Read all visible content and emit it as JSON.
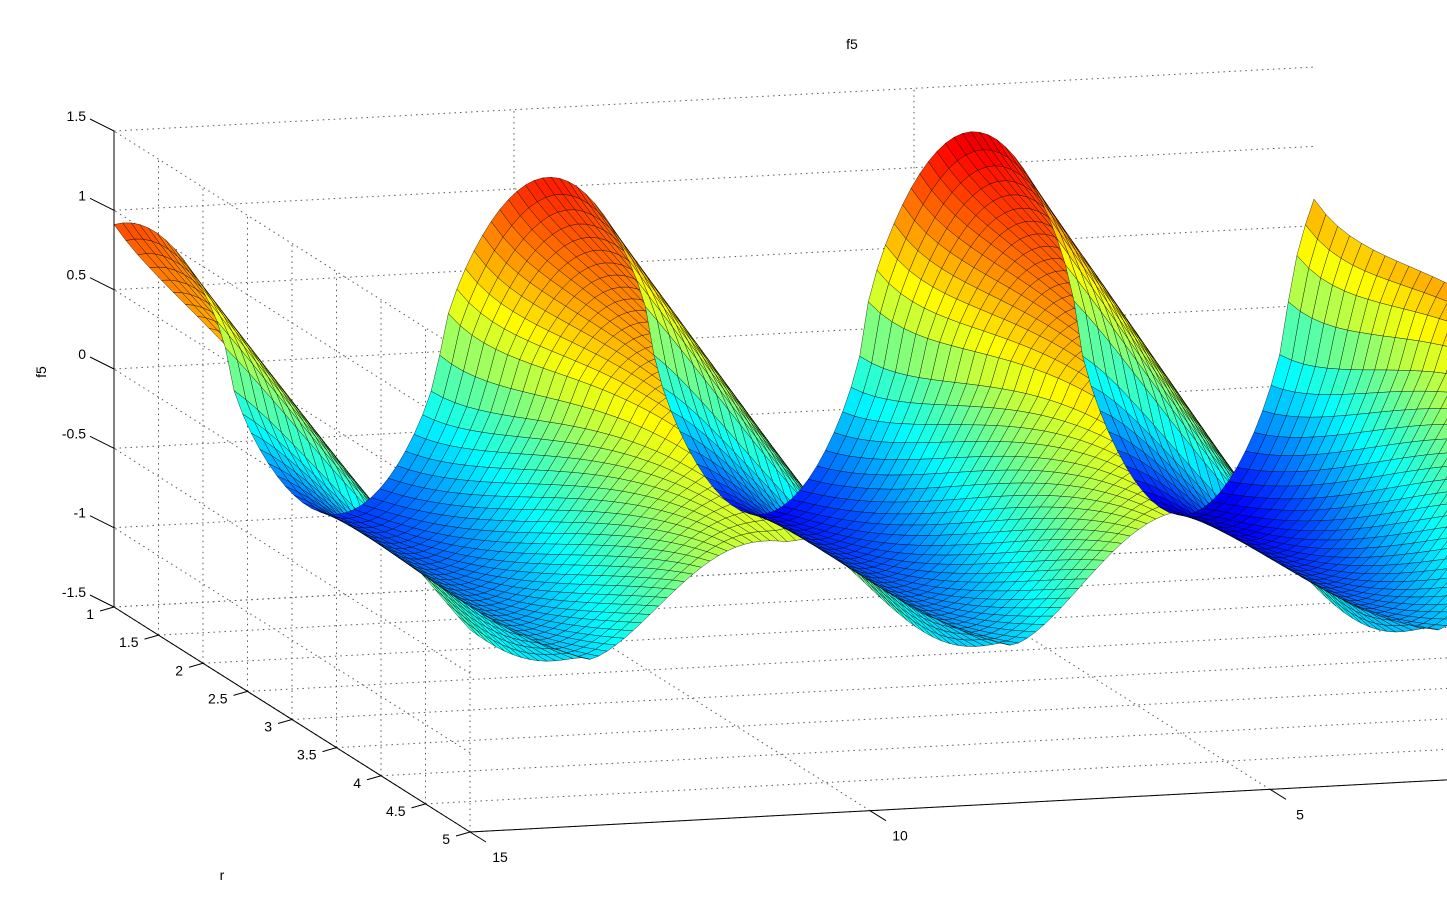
{
  "figure": {
    "title": "f5",
    "zlabel": "f5",
    "rlabel": "r"
  },
  "colors": {
    "background": "#ffffff",
    "axis": "#000000",
    "grid": "#5a5a5a",
    "edge": "#000000",
    "colormap": "jet"
  },
  "chart_data": {
    "type": "surface",
    "title": "f5",
    "zlabel": "f5",
    "rlabel": "r",
    "thlabel": "",
    "r_range": [
      1,
      5
    ],
    "th_range": [
      0,
      15
    ],
    "z_range": [
      -1.5,
      1.5
    ],
    "r_ticks": [
      "1",
      "1.5",
      "2",
      "2.5",
      "3",
      "3.5",
      "4",
      "4.5",
      "5"
    ],
    "th_ticks": [
      "15",
      "10",
      "5"
    ],
    "z_ticks": [
      "1.5",
      "1",
      "0.5",
      "0",
      "-0.5",
      "-1",
      "-1.5"
    ],
    "grid": true,
    "peaks_at_r1": [
      {
        "th": 15.0,
        "f5": 1.08
      },
      {
        "th": 9.6,
        "f5": 1.25
      },
      {
        "th": 4.3,
        "f5": 1.42
      }
    ],
    "troughs_at_r1": [
      {
        "th": 12.8,
        "f5": -1.2
      },
      {
        "th": 7.5,
        "f5": -1.3
      },
      {
        "th": 2.2,
        "f5": -1.35
      }
    ]
  }
}
